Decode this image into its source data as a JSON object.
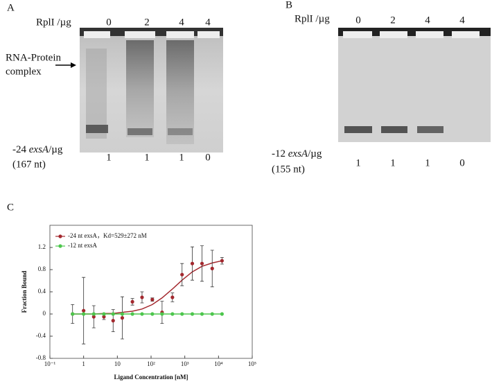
{
  "panel_a": {
    "letter": "A",
    "protein_label": "RplI /µg",
    "protein_amounts": [
      "0",
      "2",
      "4",
      "4"
    ],
    "complex_label": [
      "RNA-Protein",
      "complex"
    ],
    "rna_label": {
      "prefix": "-24 ",
      "gene": "exsA",
      "unit": "/µg"
    },
    "rna_size": "(167 nt)",
    "rna_amounts": [
      "1",
      "1",
      "1",
      "0"
    ]
  },
  "panel_b": {
    "letter": "B",
    "protein_label": "RplI /µg",
    "protein_amounts": [
      "0",
      "2",
      "4",
      "4"
    ],
    "rna_label": {
      "prefix": "-12 ",
      "gene": "exsA",
      "unit": "/µg"
    },
    "rna_size": "(155 nt)",
    "rna_amounts": [
      "1",
      "1",
      "1",
      "0"
    ]
  },
  "panel_c": {
    "letter": "C"
  },
  "chart_data": {
    "type": "scatter",
    "x_label": "Ligand Concentration [nM]",
    "y_label": "Fraction Bound",
    "log_x": true,
    "x": [
      0.47,
      1,
      2,
      4,
      7.5,
      14,
      28,
      54,
      109,
      212,
      430,
      830,
      1670,
      3240,
      6500,
      12700
    ],
    "series": [
      {
        "name": "-24 nt exsA，Kd=529±272 nM",
        "color": "#a3282e",
        "values": [
          0,
          0.06,
          -0.05,
          -0.05,
          -0.12,
          -0.07,
          0.22,
          0.3,
          0.26,
          0.03,
          0.3,
          0.71,
          0.91,
          0.91,
          0.82,
          0.96
        ],
        "errors": [
          0.17,
          0.6,
          0.2,
          0.05,
          0.2,
          0.38,
          0.06,
          0.1,
          0.03,
          0.2,
          0.08,
          0.2,
          0.3,
          0.32,
          0.33,
          0.06
        ],
        "fit_values": [
          0,
          0,
          0,
          0.01,
          0.01,
          0.03,
          0.05,
          0.09,
          0.17,
          0.29,
          0.45,
          0.61,
          0.76,
          0.86,
          0.92,
          0.96
        ]
      },
      {
        "name": "-12 nt exsA",
        "color": "#4cc64c",
        "values": [
          0,
          0,
          0,
          0,
          0,
          0,
          0,
          0,
          0,
          0,
          0,
          0,
          0,
          0,
          0,
          0
        ]
      }
    ],
    "xlim": [
      0.1,
      100000
    ],
    "xticks": [
      {
        "value": 0.1,
        "label": "10⁻¹"
      },
      1,
      10,
      {
        "value": 100,
        "label": "10²"
      },
      {
        "value": 1000,
        "label": "10³"
      },
      {
        "value": 10000,
        "label": "10⁴"
      },
      {
        "value": 100000,
        "label": "10⁵"
      }
    ],
    "ylim": [
      -0.8,
      1.6
    ],
    "yticks": [
      -0.8,
      -0.4,
      0,
      0.4,
      0.8,
      1.2
    ]
  }
}
